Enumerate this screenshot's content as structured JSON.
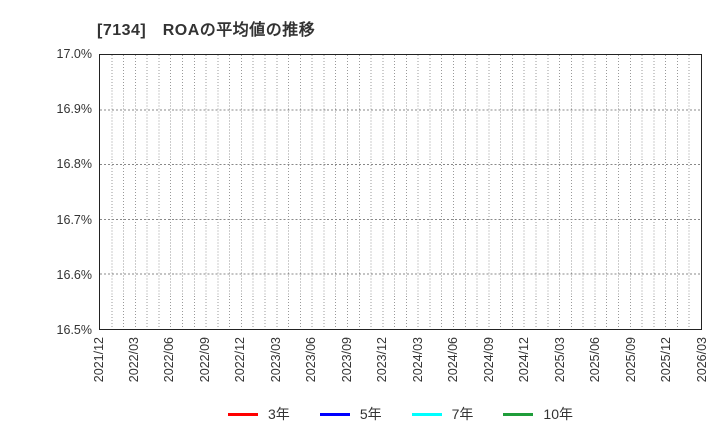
{
  "chart_data": {
    "type": "line",
    "title": "[7134]　ROAの平均値の推移",
    "title_color": "#333333",
    "x_categories": [
      "2021/12",
      "2022/03",
      "2022/06",
      "2022/09",
      "2022/12",
      "2023/03",
      "2023/06",
      "2023/09",
      "2023/12",
      "2024/03",
      "2024/06",
      "2024/09",
      "2024/12",
      "2025/03",
      "2025/06",
      "2025/09",
      "2025/12",
      "2026/03"
    ],
    "x_minor_divisions_per_interval": 3,
    "y_axis": {
      "min": 16.5,
      "max": 17.0,
      "step": 0.1,
      "suffix": "%",
      "labels": [
        "17.0%",
        "16.9%",
        "16.8%",
        "16.7%",
        "16.6%",
        "16.5%"
      ]
    },
    "grid": {
      "show": true,
      "vertical_color": "#999999",
      "horizontal_color": "#888888",
      "style": "dotted"
    },
    "series": [
      {
        "name": "3年",
        "color": "#ff0000",
        "values": []
      },
      {
        "name": "5年",
        "color": "#0000ff",
        "values": []
      },
      {
        "name": "7年",
        "color": "#00ffff",
        "values": []
      },
      {
        "name": "10年",
        "color": "#1f9d3a",
        "values": []
      }
    ],
    "legend": {
      "position": "bottom",
      "items": [
        "3年",
        "5年",
        "7年",
        "10年"
      ]
    }
  }
}
